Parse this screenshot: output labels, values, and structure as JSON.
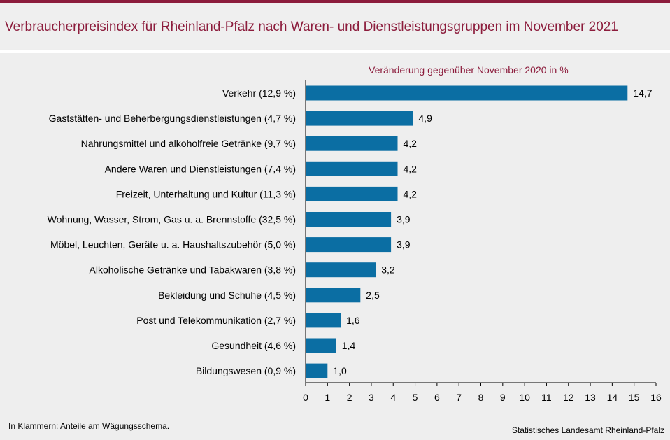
{
  "title": "Verbraucherpreisindex für Rheinland-Pfalz nach Waren- und Dienstleistungsgruppen im November 2021",
  "subtitle": "Veränderung gegenüber November 2020 in %",
  "footnote": "In Klammern: Anteile am Wägungsschema.",
  "source": "Statistisches Landesamt Rheinland-Pfalz",
  "colors": {
    "accent": "#8c1c3c",
    "bar": "#0b6ea3"
  },
  "chart_data": {
    "type": "bar",
    "orientation": "horizontal",
    "categories": [
      "Verkehr (12,9 %)",
      "Gaststätten- und Beherbergungsdienstleistungen (4,7 %)",
      "Nahrungsmittel und alkoholfreie Getränke (9,7 %)",
      "Andere Waren und Dienstleistungen (7,4 %)",
      "Freizeit, Unterhaltung und Kultur (11,3 %)",
      "Wohnung, Wasser, Strom, Gas u. a. Brennstoffe (32,5 %)",
      "Möbel, Leuchten, Geräte u. a. Haushaltszubehör  (5,0 %)",
      "Alkoholische Getränke und Tabakwaren (3,8 %)",
      "Bekleidung und Schuhe (4,5 %)",
      "Post und Telekommunikation (2,7 %)",
      "Gesundheit (4,6 %)",
      "Bildungswesen (0,9 %)"
    ],
    "values": [
      14.7,
      4.9,
      4.2,
      4.2,
      4.2,
      3.9,
      3.9,
      3.2,
      2.5,
      1.6,
      1.4,
      1.0
    ],
    "value_labels": [
      "14,7",
      "4,9",
      "4,2",
      "4,2",
      "4,2",
      "3,9",
      "3,9",
      "3,2",
      "2,5",
      "1,6",
      "1,4",
      "1,0"
    ],
    "xlim": [
      0,
      16
    ],
    "xticks": [
      0,
      1,
      2,
      3,
      4,
      5,
      6,
      7,
      8,
      9,
      10,
      11,
      12,
      13,
      14,
      15,
      16
    ],
    "grid": false
  }
}
